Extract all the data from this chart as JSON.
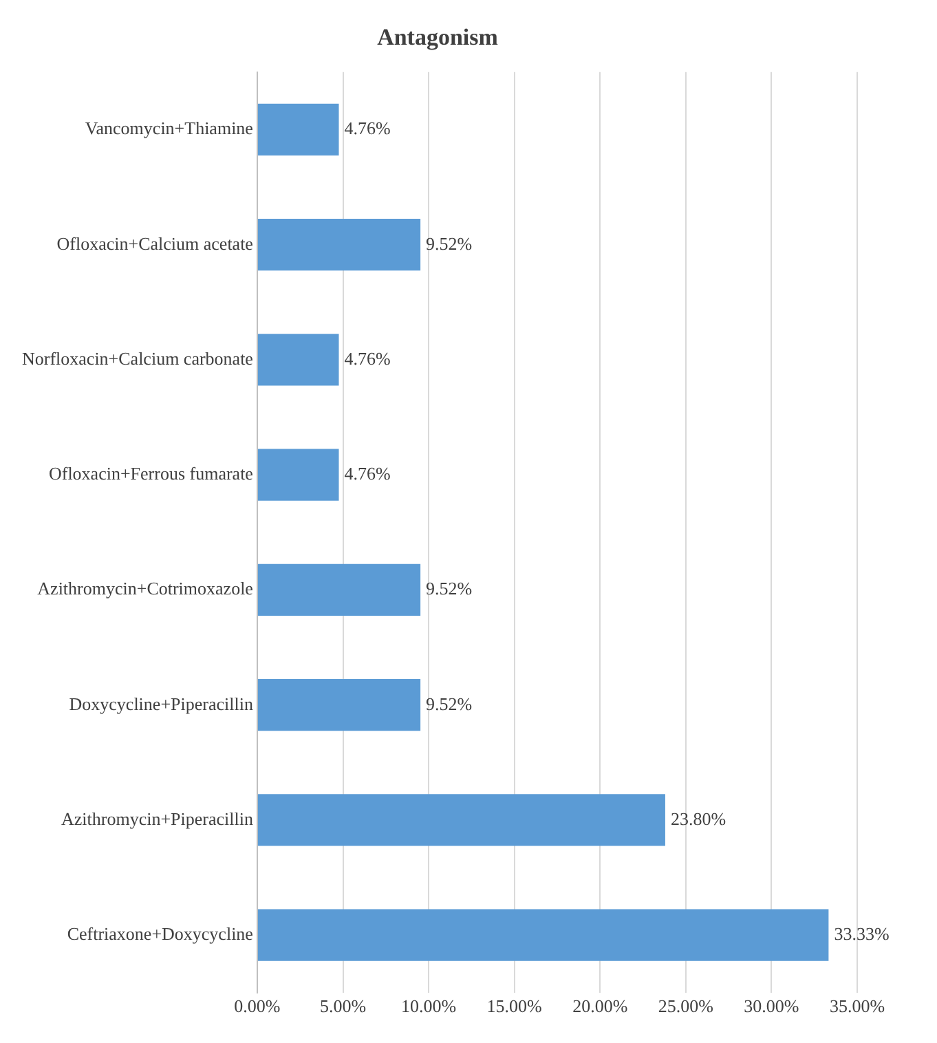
{
  "chart_data": {
    "type": "bar",
    "orientation": "horizontal",
    "title": "Antagonism",
    "categories": [
      "Vancomycin+Thiamine",
      "Ofloxacin+Calcium acetate",
      "Norfloxacin+Calcium carbonate",
      "Ofloxacin+Ferrous fumarate",
      "Azithromycin+Cotrimoxazole",
      "Doxycycline+Piperacillin",
      "Azithromycin+Piperacillin",
      "Ceftriaxone+Doxycycline"
    ],
    "values": [
      4.76,
      9.52,
      4.76,
      4.76,
      9.52,
      9.52,
      23.8,
      33.33
    ],
    "value_labels": [
      "4.76%",
      "9.52%",
      "4.76%",
      "4.76%",
      "9.52%",
      "9.52%",
      "23.80%",
      "33.33%"
    ],
    "color": "#5b9bd5",
    "xlim": [
      0,
      35
    ],
    "xticks": [
      {
        "value": 0,
        "label": "0.00%"
      },
      {
        "value": 5,
        "label": "5.00%"
      },
      {
        "value": 10,
        "label": "10.00%"
      },
      {
        "value": 15,
        "label": "15.00%"
      },
      {
        "value": 20,
        "label": "20.00%"
      },
      {
        "value": 25,
        "label": "25.00%"
      },
      {
        "value": 30,
        "label": "30.00%"
      },
      {
        "value": 35,
        "label": "35.00%"
      }
    ],
    "grid": "x",
    "legend": false
  }
}
